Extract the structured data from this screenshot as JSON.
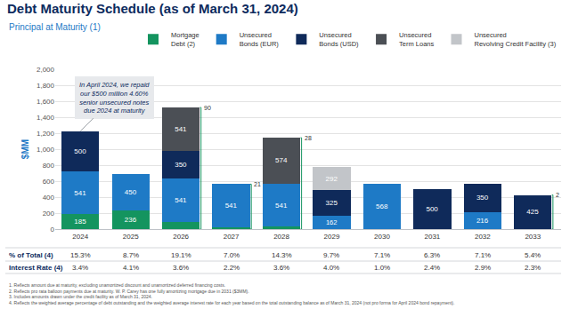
{
  "chart_data": {
    "type": "bar",
    "title": "Debt Maturity Schedule (as of March 31, 2024)",
    "subtitle": "Principal at Maturity (1)",
    "y_label": "$MM",
    "stacked": true,
    "data_labels": true,
    "grid": true,
    "legend": "top right",
    "categories": [
      "2024",
      "2025",
      "2026",
      "2027",
      "2028",
      "2029",
      "2030",
      "2031",
      "2032",
      "2033"
    ],
    "series": [
      {
        "name": "Mortgage Debt (2)",
        "color": "#14945f",
        "values": [
          185,
          236,
          90,
          21,
          28,
          null,
          null,
          null,
          null,
          2
        ]
      },
      {
        "name": "Unsecured Bonds (EUR)",
        "color": "#1e7ac6",
        "values": [
          541,
          450,
          541,
          541,
          541,
          162,
          568,
          null,
          216,
          null
        ]
      },
      {
        "name": "Unsecured Bonds (USD)",
        "color": "#0f2a5a",
        "values": [
          500,
          null,
          350,
          null,
          null,
          325,
          null,
          500,
          350,
          425
        ]
      },
      {
        "name": "Unsecured Term Loans",
        "color": "#4b4f55",
        "values": [
          null,
          null,
          541,
          null,
          574,
          null,
          null,
          null,
          null,
          null
        ]
      },
      {
        "name": "Unsecured Revolving Credit Facility (3)",
        "color": "#c2c5c9",
        "values": [
          null,
          null,
          null,
          null,
          null,
          292,
          null,
          null,
          null,
          null
        ]
      }
    ],
    "ylim": [
      0,
      2000
    ],
    "yticks": [
      0,
      200,
      400,
      600,
      800,
      {
        "value": 1000,
        "label": "1,000"
      },
      {
        "value": 1200,
        "label": "1,200"
      },
      {
        "value": 1400,
        "label": "1,400"
      },
      {
        "value": 1600,
        "label": "1,600"
      },
      {
        "value": 1800,
        "label": "1,800"
      },
      {
        "value": 2000,
        "label": "2,000"
      }
    ],
    "annotation": {
      "category": "2024",
      "text": [
        "In April 2024, we repaid",
        "our $500 million 4.60%",
        "senior unsecured notes",
        "due 2024 at maturity"
      ]
    },
    "table": {
      "rows": [
        {
          "label": "% of Total (4)",
          "values": [
            "15.3%",
            "8.7%",
            "19.1%",
            "7.0%",
            "14.3%",
            "9.7%",
            "7.1%",
            "6.3%",
            "7.1%",
            "5.4%"
          ]
        },
        {
          "label": "Interest Rate (4)",
          "values": [
            "3.4%",
            "4.1%",
            "3.6%",
            "2.2%",
            "3.6%",
            "4.0%",
            "1.0%",
            "2.4%",
            "2.9%",
            "2.3%"
          ]
        }
      ]
    },
    "footnotes": [
      "1. Reflects amount due at maturity, excluding unamortized discount and unamortized deferred financing costs.",
      "2. Reflects pro rata balloon payments due at maturity. W. P. Carey has one fully amortizing mortgage due in 2031 ($3MM).",
      "3. Includes amounts drawn under the credit facility as of March 31, 2024.",
      "4. Reflects the weighted average percentage of debt outstanding and the weighted average interest rate for each year based on the total outstanding balance as of March 31, 2024 (not pro forma for April 2024 bond repayment)."
    ]
  }
}
